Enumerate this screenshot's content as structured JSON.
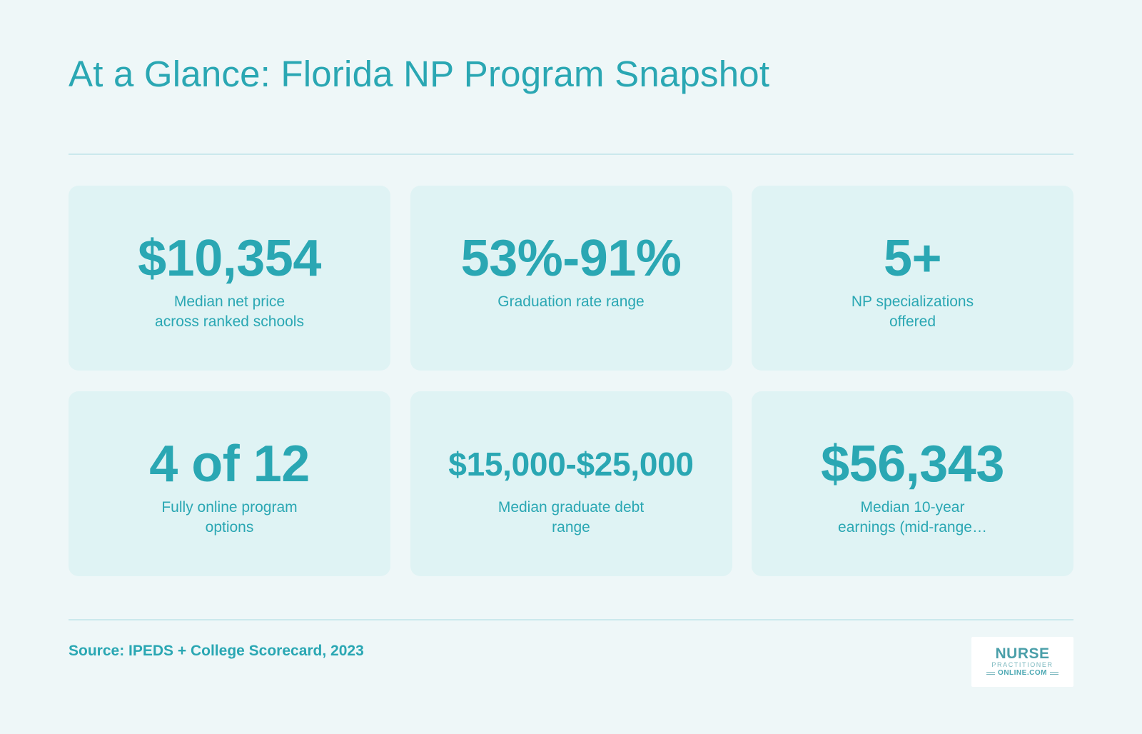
{
  "header": {
    "title": "At a Glance: Florida NP Program Snapshot"
  },
  "stats": [
    {
      "value": "$10,354",
      "label_line1": "Median net price",
      "label_line2": "across ranked schools"
    },
    {
      "value": "53%-91%",
      "label_line1": "Graduation rate range",
      "label_line2": ""
    },
    {
      "value": "5+",
      "label_line1": "NP specializations",
      "label_line2": "offered"
    },
    {
      "value": "4 of 12",
      "label_line1": "Fully online program",
      "label_line2": "options"
    },
    {
      "value": "$15,000-$25,000",
      "label_line1": "Median graduate debt",
      "label_line2": "range"
    },
    {
      "value": "$56,343",
      "label_line1": "Median 10-year",
      "label_line2": "earnings (mid-range…"
    }
  ],
  "footer": {
    "source": "Source: IPEDS + College Scorecard, 2023",
    "logo": {
      "line1": "NURSE",
      "line2": "PRACTITIONER",
      "line3": "ONLINE.COM"
    }
  },
  "colors": {
    "background": "#eef7f8",
    "card": "#dff3f4",
    "accent": "#2aa7b3",
    "rule": "#cbe9ed"
  }
}
